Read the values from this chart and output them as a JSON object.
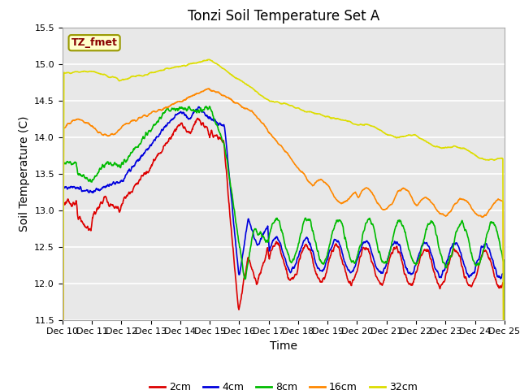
{
  "title": "Tonzi Soil Temperature Set A",
  "xlabel": "Time",
  "ylabel": "Soil Temperature (C)",
  "ylim": [
    11.5,
    15.5
  ],
  "xtick_labels": [
    "Dec 10",
    "Dec 11",
    "Dec 12",
    "Dec 13",
    "Dec 14",
    "Dec 15",
    "Dec 16",
    "Dec 17",
    "Dec 18",
    "Dec 19",
    "Dec 20",
    "Dec 21",
    "Dec 22",
    "Dec 23",
    "Dec 24",
    "Dec 25"
  ],
  "ytick_vals": [
    11.5,
    12.0,
    12.5,
    13.0,
    13.5,
    14.0,
    14.5,
    15.0,
    15.5
  ],
  "series_colors": {
    "2cm": "#dd0000",
    "4cm": "#0000dd",
    "8cm": "#00bb00",
    "16cm": "#ff8800",
    "32cm": "#dddd00"
  },
  "series_labels": [
    "2cm",
    "4cm",
    "8cm",
    "16cm",
    "32cm"
  ],
  "legend_label": "TZ_fmet",
  "legend_label_color": "#880000",
  "legend_box_facecolor": "#ffffcc",
  "legend_box_edgecolor": "#999900",
  "fig_facecolor": "#ffffff",
  "plot_facecolor": "#e8e8e8",
  "grid_color": "#ffffff",
  "title_fontsize": 12,
  "axis_label_fontsize": 10,
  "tick_fontsize": 8
}
